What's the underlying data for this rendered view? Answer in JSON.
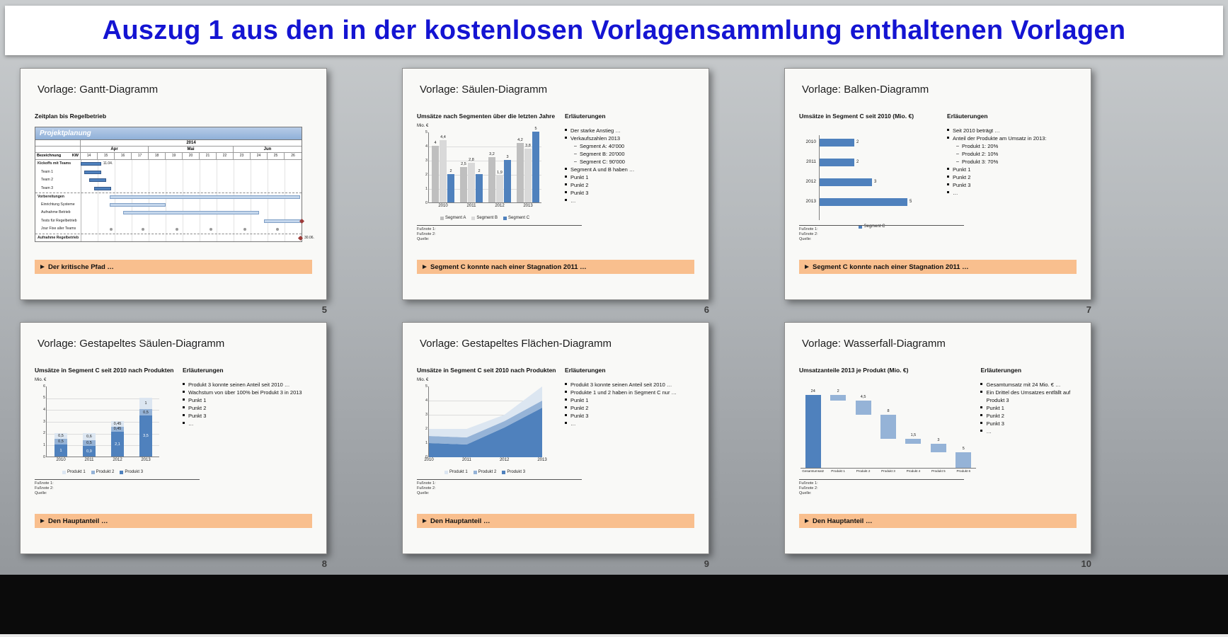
{
  "header": {
    "title": "Auszug 1 aus den in der kostenlosen Vorlagensammlung enthaltenen Vorlagen"
  },
  "colors": {
    "title_blue": "#1414d2",
    "callout_orange": "#f9bf8e",
    "accent_blue": "#4f81bd"
  },
  "footnotes": {
    "f1": "Fußnote 1:",
    "f2": "Fußnote 2:",
    "source": "Quelle:"
  },
  "slides": [
    {
      "id": "gantt",
      "title": "Vorlage: Gantt-Diagramm",
      "page_number": "5",
      "chart_title": "Zeitplan bis Regelbetrieb",
      "callout": "Der kritische Pfad …",
      "gantt": {
        "corner_title": "Projektplanung",
        "year": "2014",
        "months": [
          {
            "label": "Apr",
            "weeks": 4
          },
          {
            "label": "Mai",
            "weeks": 5
          },
          {
            "label": "Jun",
            "weeks": 4
          }
        ],
        "name_header": "Bezeichnung",
        "kw_header": "KW",
        "weeks": [
          "14",
          "15",
          "16",
          "17",
          "18",
          "19",
          "20",
          "21",
          "22",
          "23",
          "24",
          "25",
          "26"
        ],
        "rows": [
          {
            "name": "Kickoffs mit Teams",
            "type": "bar",
            "start": 0,
            "len": 1.2,
            "shade": "dark",
            "label": "11.04.",
            "bold": true
          },
          {
            "name": "Team 1",
            "type": "bar",
            "start": 0.2,
            "len": 1,
            "shade": "dark",
            "indent": true
          },
          {
            "name": "Team 2",
            "type": "bar",
            "start": 0.5,
            "len": 1,
            "shade": "dark",
            "indent": true
          },
          {
            "name": "Team 3",
            "type": "bar",
            "start": 0.8,
            "len": 1,
            "shade": "dark",
            "indent": true
          },
          {
            "name": "Vorbereitungen",
            "type": "bar",
            "start": 1.7,
            "len": 11.2,
            "shade": "light",
            "sep": true,
            "bold": true
          },
          {
            "name": "Einrichtung Systeme",
            "type": "bar",
            "start": 1.7,
            "len": 3.3,
            "shade": "light",
            "indent": true
          },
          {
            "name": "Aufnahme Betrieb",
            "type": "bar",
            "start": 2.5,
            "len": 8,
            "shade": "light",
            "indent": true
          },
          {
            "name": "Tests für Regelbetrieb",
            "type": "bar",
            "start": 10.8,
            "len": 2.2,
            "shade": "light",
            "indent": true,
            "milestone_end": true
          },
          {
            "name": "Jour Fixe aller Teams",
            "type": "dots",
            "dots": [
              1.7,
              3.6,
              5.6,
              7.6,
              9.6,
              11.5
            ],
            "indent": true
          },
          {
            "name": "Aufnahme Regelbetrieb",
            "type": "milestone",
            "at": 13,
            "label": "30.06.",
            "sep": true,
            "bold": true
          }
        ]
      }
    },
    {
      "id": "column",
      "title": "Vorlage: Säulen-Diagramm",
      "page_number": "6",
      "chart_title": "Umsätze nach Segmenten über die letzten Jahre",
      "explanations_title": "Erläuterungen",
      "callout": "Segment C konnte nach einer Stagnation 2011 …",
      "bullets": [
        {
          "level": 1,
          "text": "Der starke Anstieg …"
        },
        {
          "level": 1,
          "text": "Verkaufszahlen 2013"
        },
        {
          "level": 2,
          "text": "Segment A: 40'000"
        },
        {
          "level": 2,
          "text": "Segment B: 20'000"
        },
        {
          "level": 2,
          "text": "Segment C: 90'000"
        },
        {
          "level": 1,
          "text": "Segment A und B haben …"
        },
        {
          "level": 1,
          "text": "Punkt 1"
        },
        {
          "level": 1,
          "text": "Punkt 2"
        },
        {
          "level": 1,
          "text": "Punkt 3"
        },
        {
          "level": 1,
          "text": "…"
        }
      ],
      "chart": {
        "type": "grouped-column",
        "axis_label": "Mio. €",
        "ymax": 5,
        "yticks": [
          0,
          1,
          2,
          3,
          4,
          5
        ],
        "categories": [
          "2010",
          "2011",
          "2012",
          "2013"
        ],
        "series": [
          {
            "name": "Segment A",
            "color": "#bfbfbf",
            "values": [
              4,
              2.5,
              3.2,
              4.2
            ],
            "labels": [
              "4",
              "2,5",
              "3,2",
              "4,2"
            ]
          },
          {
            "name": "Segment B",
            "color": "#d9d9d9",
            "values": [
              4.4,
              2.8,
              1.9,
              3.8
            ],
            "labels": [
              "4,4",
              "2,8",
              "1,9",
              "3,8"
            ]
          },
          {
            "name": "Segment C",
            "color": "#4f81bd",
            "values": [
              2,
              2,
              3,
              5
            ],
            "labels": [
              "2",
              "2",
              "3",
              "5"
            ]
          }
        ]
      }
    },
    {
      "id": "bar",
      "title": "Vorlage: Balken-Diagramm",
      "page_number": "7",
      "chart_title": "Umsätze in Segment C seit 2010 (Mio. €)",
      "explanations_title": "Erläuterungen",
      "callout": "Segment C konnte nach einer Stagnation 2011 …",
      "bullets": [
        {
          "level": 1,
          "text": "Seit 2010 beträgt …"
        },
        {
          "level": 1,
          "text": "Anteil der Produkte am Umsatz in 2013:"
        },
        {
          "level": 2,
          "text": "Produkt 1: 20%"
        },
        {
          "level": 2,
          "text": "Produkt 2: 10%"
        },
        {
          "level": 2,
          "text": "Produkt 3: 70%"
        },
        {
          "level": 1,
          "text": "Punkt 1"
        },
        {
          "level": 1,
          "text": "Punkt 2"
        },
        {
          "level": 1,
          "text": "Punkt 3"
        },
        {
          "level": 1,
          "text": "…"
        }
      ],
      "chart": {
        "type": "bar-horizontal",
        "categories": [
          "2010",
          "2011",
          "2012",
          "2013"
        ],
        "values": [
          2,
          2,
          3,
          5
        ],
        "labels": [
          "2",
          "2",
          "3",
          "5"
        ],
        "xmax": 6,
        "color": "#4f81bd",
        "legend": [
          {
            "name": "Segment C",
            "color": "#4f81bd"
          }
        ]
      }
    },
    {
      "id": "stacked-column",
      "title": "Vorlage: Gestapeltes Säulen-Diagramm",
      "page_number": "8",
      "chart_title": "Umsätze in Segment C seit 2010 nach Produkten",
      "explanations_title": "Erläuterungen",
      "callout": "Den Hauptanteil …",
      "bullets": [
        {
          "level": 1,
          "text": "Produkt 3 konnte seinen Anteil seit 2010 …"
        },
        {
          "level": 1,
          "text": "Wachstum von über 100% bei Produkt 3 in 2013"
        },
        {
          "level": 1,
          "text": "Punkt 1"
        },
        {
          "level": 1,
          "text": "Punkt 2"
        },
        {
          "level": 1,
          "text": "Punkt 3"
        },
        {
          "level": 1,
          "text": "…"
        }
      ],
      "chart": {
        "type": "stacked-column",
        "axis_label": "Mio. €",
        "ymax": 6,
        "yticks": [
          0,
          1,
          2,
          3,
          4,
          5,
          6
        ],
        "categories": [
          "2010",
          "2011",
          "2012",
          "2013"
        ],
        "series": [
          {
            "name": "Produkt 3",
            "color": "#4f81bd",
            "values": [
              1,
              0.9,
              2.1,
              3.5
            ],
            "labels": [
              "1",
              "0,9",
              "2,1",
              "3,5"
            ]
          },
          {
            "name": "Produkt 2",
            "color": "#95b3d7",
            "values": [
              0.5,
              0.5,
              0.45,
              0.5
            ],
            "labels": [
              "0,5",
              "0,5",
              "0,45",
              "0,5"
            ]
          },
          {
            "name": "Produkt 1",
            "color": "#dce6f1",
            "values": [
              0.5,
              0.6,
              0.45,
              1
            ],
            "labels": [
              "0,5",
              "0,6",
              "0,45",
              "1"
            ]
          }
        ],
        "legend": [
          {
            "name": "Produkt 1",
            "color": "#dce6f1"
          },
          {
            "name": "Produkt 2",
            "color": "#95b3d7"
          },
          {
            "name": "Produkt 3",
            "color": "#4f81bd"
          }
        ]
      }
    },
    {
      "id": "stacked-area",
      "title": "Vorlage: Gestapeltes Flächen-Diagramm",
      "page_number": "9",
      "chart_title": "Umsätze in Segment C seit 2010 nach Produkten",
      "explanations_title": "Erläuterungen",
      "callout": "Den Hauptanteil …",
      "bullets": [
        {
          "level": 1,
          "text": "Produkt 3 konnte seinen Anteil seit 2010 …"
        },
        {
          "level": 1,
          "text": "Produkte 1 und 2 haben in Segment C nur …"
        },
        {
          "level": 1,
          "text": "Punkt 1"
        },
        {
          "level": 1,
          "text": "Punkt 2"
        },
        {
          "level": 1,
          "text": "Punkt 3"
        },
        {
          "level": 1,
          "text": "…"
        }
      ],
      "chart": {
        "type": "stacked-area",
        "axis_label": "Mio. €",
        "ymax": 5,
        "yticks": [
          0,
          1,
          2,
          3,
          4,
          5
        ],
        "x": [
          "2010",
          "2011",
          "2012",
          "2013"
        ],
        "series": [
          {
            "name": "Produkt 3",
            "color": "#4f81bd",
            "values": [
              1,
              0.9,
              2.1,
              3.5
            ]
          },
          {
            "name": "Produkt 2",
            "color": "#95b3d7",
            "values": [
              0.5,
              0.5,
              0.45,
              0.5
            ]
          },
          {
            "name": "Produkt 1",
            "color": "#dce6f1",
            "values": [
              0.5,
              0.6,
              0.45,
              1
            ]
          }
        ],
        "legend": [
          {
            "name": "Produkt 1",
            "color": "#dce6f1"
          },
          {
            "name": "Produkt 2",
            "color": "#95b3d7"
          },
          {
            "name": "Produkt 3",
            "color": "#4f81bd"
          }
        ]
      }
    },
    {
      "id": "waterfall",
      "title": "Vorlage: Wasserfall-Diagramm",
      "page_number": "10",
      "chart_title": "Umsatzanteile 2013 je Produkt (Mio. €)",
      "explanations_title": "Erläuterungen",
      "callout": "Den Hauptanteil …",
      "bullets": [
        {
          "level": 1,
          "text": "Gesamtumsatz mit 24 Mio. € …"
        },
        {
          "level": 1,
          "text": "Ein Drittel des Umsatzes entfällt auf Produkt 3"
        },
        {
          "level": 1,
          "text": "Punkt 1"
        },
        {
          "level": 1,
          "text": "Punkt 2"
        },
        {
          "level": 1,
          "text": "Punkt 3"
        },
        {
          "level": 1,
          "text": "…"
        }
      ],
      "chart": {
        "type": "waterfall",
        "ymax": 26,
        "categories": [
          "Gesamtumsatz",
          "Produkt 1",
          "Produkt 2",
          "Produkt 3",
          "Produkt 4",
          "Produkt 5",
          "Produkt 6"
        ],
        "segments": [
          {
            "from": 0,
            "to": 24,
            "label": "24",
            "color": "#4f81bd"
          },
          {
            "from": 22,
            "to": 24,
            "label": "2",
            "color": "#95b3d7"
          },
          {
            "from": 17.5,
            "to": 22,
            "label": "4,5",
            "color": "#95b3d7"
          },
          {
            "from": 9.5,
            "to": 17.5,
            "label": "8",
            "color": "#95b3d7"
          },
          {
            "from": 8,
            "to": 9.5,
            "label": "1,5",
            "color": "#95b3d7"
          },
          {
            "from": 5,
            "to": 8,
            "label": "3",
            "color": "#95b3d7"
          },
          {
            "from": 0,
            "to": 5,
            "label": "5",
            "color": "#95b3d7"
          }
        ]
      }
    }
  ]
}
